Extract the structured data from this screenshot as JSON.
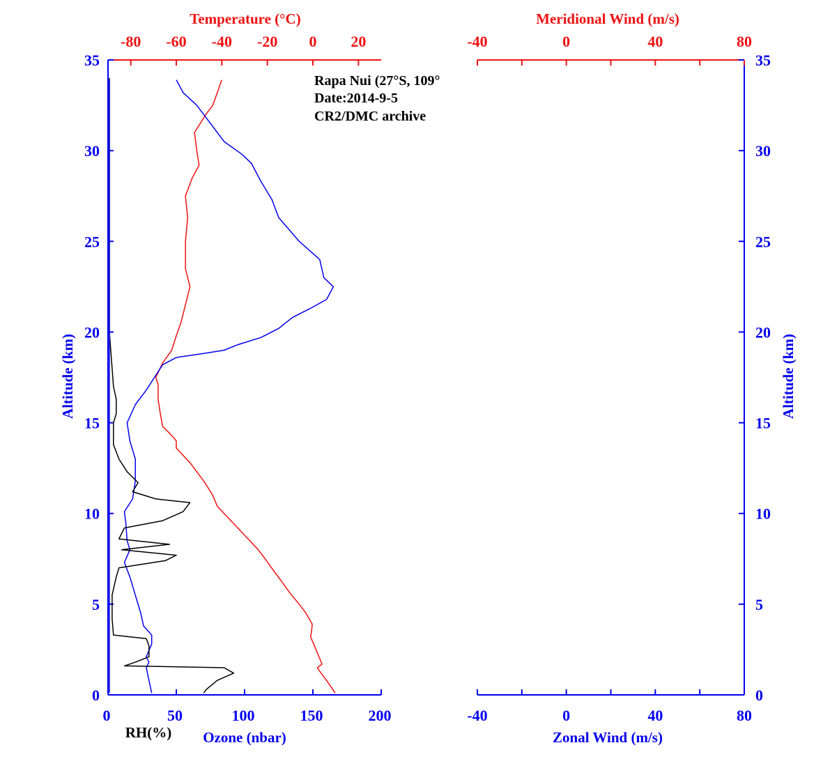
{
  "colors": {
    "blue": "#0000ee",
    "red": "#ee1111",
    "black": "#000000"
  },
  "chart_data": [
    {
      "type": "line",
      "panel": "left",
      "annotation": [
        "Rapa Nui (27°S, 109°",
        "Date:2014-9-5",
        "CR2/DMC archive"
      ],
      "axes": {
        "altitude": {
          "label": "Altitude (km)",
          "range": [
            0,
            35
          ],
          "ticks": [
            "0",
            "5",
            "10",
            "15",
            "20",
            "25",
            "30",
            "35"
          ]
        },
        "temperature": {
          "label": "Temperature (°C)",
          "range": [
            -90,
            30
          ],
          "ticks": [
            "-80",
            "-60",
            "-40",
            "-20",
            "0",
            "20"
          ],
          "position": "top"
        },
        "ozone": {
          "label": "Ozone (nbar)",
          "range": [
            0,
            200
          ],
          "ticks": [
            "0",
            "50",
            "100",
            "150",
            "200"
          ],
          "position": "bottom"
        },
        "rh": {
          "label": "RH(%)",
          "position": "bottom"
        }
      },
      "series": [
        {
          "name": "Temperature",
          "axis": "temperature",
          "color": "#ee1111",
          "points": [
            [
              9.8,
              0.1
            ],
            [
              6,
              0.8
            ],
            [
              3,
              1.3
            ],
            [
              2,
              1.5
            ],
            [
              4,
              1.7
            ],
            [
              1,
              2.6
            ],
            [
              -1,
              3.2
            ],
            [
              -0.5,
              3.6
            ],
            [
              -0.3,
              3.9
            ],
            [
              -3,
              4.5
            ],
            [
              -6,
              5
            ],
            [
              -10,
              5.6
            ],
            [
              -14,
              6.3
            ],
            [
              -17,
              6.8
            ],
            [
              -21,
              7.5
            ],
            [
              -24,
              8
            ],
            [
              -30,
              8.8
            ],
            [
              -36,
              9.6
            ],
            [
              -42,
              10.4
            ],
            [
              -44,
              11
            ],
            [
              -48,
              11.8
            ],
            [
              -54,
              12.8
            ],
            [
              -60,
              13.6
            ],
            [
              -60,
              14
            ],
            [
              -62,
              14.3
            ],
            [
              -66,
              14.8
            ],
            [
              -67,
              15.5
            ],
            [
              -68,
              16.3
            ],
            [
              -68,
              17.1
            ],
            [
              -69,
              17.5
            ],
            [
              -66,
              18.3
            ],
            [
              -62,
              19
            ],
            [
              -60,
              19.8
            ],
            [
              -58,
              20.5
            ],
            [
              -56,
              21.5
            ],
            [
              -54,
              22.5
            ],
            [
              -56,
              23.5
            ],
            [
              -56,
              25
            ],
            [
              -55,
              26.3
            ],
            [
              -56,
              27.5
            ],
            [
              -53,
              28.5
            ],
            [
              -50,
              29.2
            ],
            [
              -51,
              30
            ],
            [
              -52,
              31
            ],
            [
              -47,
              32
            ],
            [
              -44,
              32.5
            ],
            [
              -42,
              33.2
            ],
            [
              -40,
              33.9
            ]
          ]
        },
        {
          "name": "Ozone",
          "axis": "ozone",
          "color": "#0000ee",
          "points": [
            [
              32,
              0.1
            ],
            [
              28,
              1.5
            ],
            [
              30,
              1.8
            ],
            [
              28,
              2.1
            ],
            [
              32,
              2.8
            ],
            [
              32,
              3.3
            ],
            [
              26,
              3.8
            ],
            [
              24,
              4.5
            ],
            [
              20,
              5.5
            ],
            [
              16,
              6.5
            ],
            [
              12,
              7.3
            ],
            [
              16,
              8
            ],
            [
              14,
              8.5
            ],
            [
              13,
              9.5
            ],
            [
              12,
              10.1
            ],
            [
              18,
              10.8
            ],
            [
              20,
              11.8
            ],
            [
              20,
              13
            ],
            [
              16,
              14
            ],
            [
              14,
              15
            ],
            [
              20,
              16
            ],
            [
              28,
              16.8
            ],
            [
              34,
              17.5
            ],
            [
              40,
              18.2
            ],
            [
              50,
              18.6
            ],
            [
              68,
              18.8
            ],
            [
              85,
              19
            ],
            [
              95,
              19.3
            ],
            [
              112,
              19.7
            ],
            [
              125,
              20.2
            ],
            [
              135,
              20.8
            ],
            [
              148,
              21.3
            ],
            [
              160,
              21.8
            ],
            [
              165,
              22.5
            ],
            [
              158,
              23
            ],
            [
              155,
              24
            ],
            [
              140,
              25
            ],
            [
              125,
              26.3
            ],
            [
              120,
              27.3
            ],
            [
              112,
              28.3
            ],
            [
              105,
              29.3
            ],
            [
              98,
              29.8
            ],
            [
              85,
              30.5
            ],
            [
              78,
              31.2
            ],
            [
              70,
              32
            ],
            [
              65,
              32.5
            ],
            [
              55,
              33.2
            ],
            [
              50,
              33.9
            ]
          ]
        },
        {
          "name": "RH",
          "axis": "ozone",
          "color": "#000000",
          "points": [
            [
              70,
              0.1
            ],
            [
              72,
              0.3
            ],
            [
              80,
              0.8
            ],
            [
              92,
              1.2
            ],
            [
              85,
              1.5
            ],
            [
              12,
              1.6
            ],
            [
              20,
              1.8
            ],
            [
              30,
              2.1
            ],
            [
              30,
              2.7
            ],
            [
              28,
              3.1
            ],
            [
              4,
              3.3
            ],
            [
              3,
              4.2
            ],
            [
              3,
              5.5
            ],
            [
              6,
              6.5
            ],
            [
              8,
              7
            ],
            [
              42,
              7.4
            ],
            [
              50,
              7.7
            ],
            [
              10,
              8
            ],
            [
              45,
              8.3
            ],
            [
              8,
              8.6
            ],
            [
              12,
              9.2
            ],
            [
              40,
              9.6
            ],
            [
              55,
              10.1
            ],
            [
              60,
              10.6
            ],
            [
              35,
              10.8
            ],
            [
              18,
              11.2
            ],
            [
              22,
              11.7
            ],
            [
              14,
              12.3
            ],
            [
              8,
              13
            ],
            [
              4,
              13.8
            ],
            [
              4,
              15
            ],
            [
              6,
              15.5
            ],
            [
              6,
              16.3
            ],
            [
              4,
              17
            ],
            [
              3,
              18
            ],
            [
              2,
              19
            ],
            [
              1,
              20
            ],
            [
              1,
              34
            ]
          ]
        },
        {
          "name": "RH-surface",
          "axis": "ozone",
          "color": "#0000ee",
          "points": [
            [
              1,
              0.1
            ],
            [
              1,
              33.9
            ]
          ]
        }
      ]
    },
    {
      "type": "line",
      "panel": "right",
      "axes": {
        "altitude": {
          "label": "Altitude (km)",
          "range": [
            0,
            35
          ],
          "ticks": [
            "0",
            "5",
            "10",
            "15",
            "20",
            "25",
            "30",
            "35"
          ],
          "position": "right"
        },
        "meridional": {
          "label": "Meridional Wind (m/s)",
          "range": [
            -40,
            80
          ],
          "ticks": [
            "-40",
            "0",
            "40",
            "80"
          ],
          "position": "top"
        },
        "zonal": {
          "label": "Zonal Wind (m/s)",
          "range": [
            -40,
            80
          ],
          "ticks": [
            "-40",
            "0",
            "40",
            "80"
          ],
          "position": "bottom"
        }
      },
      "series": []
    }
  ]
}
